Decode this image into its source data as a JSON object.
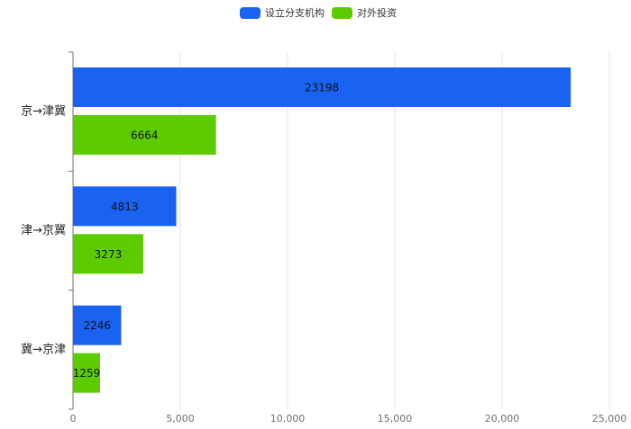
{
  "chart_data": {
    "type": "hbar",
    "categories": [
      "京→津冀",
      "津→京冀",
      "冀→京津"
    ],
    "series": [
      {
        "name": "设立分支机构",
        "color": "#1a63f2",
        "values": [
          23198,
          4813,
          2246
        ]
      },
      {
        "name": "对外投资",
        "color": "#5ccc00",
        "values": [
          6664,
          3273,
          1259
        ]
      }
    ],
    "xlim": [
      0,
      25000
    ],
    "xticks": [
      0,
      {
        "value": 5000,
        "label": "5,000"
      },
      {
        "value": 10000,
        "label": "10,000"
      },
      {
        "value": 15000,
        "label": "15,000"
      },
      {
        "value": 20000,
        "label": "20,000"
      },
      {
        "value": 25000,
        "label": "25,000"
      }
    ],
    "grid": true,
    "legend": "top"
  }
}
